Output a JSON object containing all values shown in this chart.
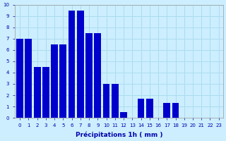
{
  "categories": [
    0,
    1,
    2,
    3,
    4,
    5,
    6,
    7,
    8,
    9,
    10,
    11,
    12,
    13,
    14,
    15,
    16,
    17,
    18,
    19,
    20,
    21,
    22,
    23
  ],
  "values": [
    7,
    7,
    4.5,
    4.5,
    6.5,
    6.5,
    9.5,
    9.5,
    7.5,
    7.5,
    3,
    3,
    0.5,
    0,
    1.7,
    1.7,
    0,
    1.3,
    1.3,
    0,
    0,
    0,
    0,
    0
  ],
  "bar_color": "#0000cc",
  "bg_color": "#cceeff",
  "grid_color": "#aaddee",
  "xlabel": "Précipitations 1h ( mm )",
  "ylim": [
    0,
    10
  ],
  "yticks": [
    0,
    1,
    2,
    3,
    4,
    5,
    6,
    7,
    8,
    9,
    10
  ],
  "xlim_left": -0.6,
  "xlim_right": 23.5,
  "bar_width": 0.8,
  "xlabel_fontsize": 6.5,
  "tick_fontsize": 5,
  "tick_color": "#0000aa"
}
